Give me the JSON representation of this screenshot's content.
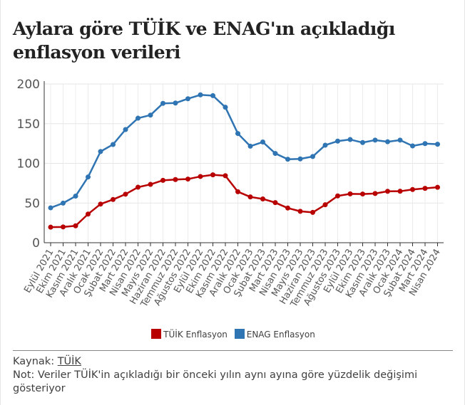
{
  "title": "Aylara göre TÜİK ve ENAG'ın açıkladığı enflasyon verileri",
  "chart_data": {
    "type": "line",
    "title": "Aylara göre TÜİK ve ENAG'ın açıkladığı enflasyon verileri",
    "categories": [
      "Eylül 2021",
      "Ekim 2021",
      "Kasım 2021",
      "Aralık 2021",
      "Ocak 2022",
      "Şubat 2022",
      "Mart 2022",
      "Nisan 2022",
      "Mayıs 2022",
      "Haziran 2022",
      "Temmuz 2022",
      "Ağustos 2022",
      "Eylül 2022",
      "Ekim 2022",
      "Kasım 2022",
      "Aralık 2022",
      "Ocak 2023",
      "Şubat 2023",
      "Mart 2023",
      "Nisan 2023",
      "Mayıs 2023",
      "Haziran 2023",
      "Temmuz 2023",
      "Ağustos 2023",
      "Eylül 2023",
      "Ekim 2023",
      "Kasım 2023",
      "Aralık 2023",
      "Ocak 2024",
      "Şubat 2024",
      "Mart 2024",
      "Nisan 2024"
    ],
    "series": [
      {
        "name": "TÜİK Enflasyon",
        "color": "#b80000",
        "values": [
          19.58,
          19.89,
          21.31,
          36.08,
          48.69,
          54.44,
          61.14,
          69.97,
          73.5,
          78.62,
          79.6,
          80.21,
          83.45,
          85.51,
          84.39,
          64.27,
          57.68,
          55.18,
          50.51,
          43.68,
          39.59,
          38.21,
          47.83,
          58.94,
          61.53,
          61.36,
          61.98,
          64.77,
          64.86,
          67.07,
          68.5,
          69.8
        ]
      },
      {
        "name": "ENAG Enflasyon",
        "color": "#2f74b3",
        "values": [
          44.0,
          49.9,
          58.7,
          82.8,
          114.9,
          123.8,
          142.6,
          156.9,
          160.8,
          175.6,
          176.0,
          181.4,
          186.3,
          185.3,
          170.7,
          137.6,
          121.6,
          126.9,
          112.5,
          105.2,
          105.6,
          108.6,
          122.9,
          128.0,
          130.0,
          126.2,
          129.3,
          127.2,
          129.3,
          122.0,
          124.9,
          124.1
        ]
      }
    ],
    "yticks": [
      0,
      50,
      100,
      150,
      200
    ],
    "ylim": [
      0,
      200
    ],
    "grid": true,
    "legend": "bottom"
  },
  "legend": {
    "items": [
      "TÜİK Enflasyon",
      "ENAG Enflasyon"
    ]
  },
  "footer": {
    "source_label": "Kaynak:",
    "source_link": "TÜİK",
    "note": "Not: Veriler TÜİK'in açıkladığı bir önceki yılın aynı ayına göre yüzdelik değişimi gösteriyor"
  }
}
